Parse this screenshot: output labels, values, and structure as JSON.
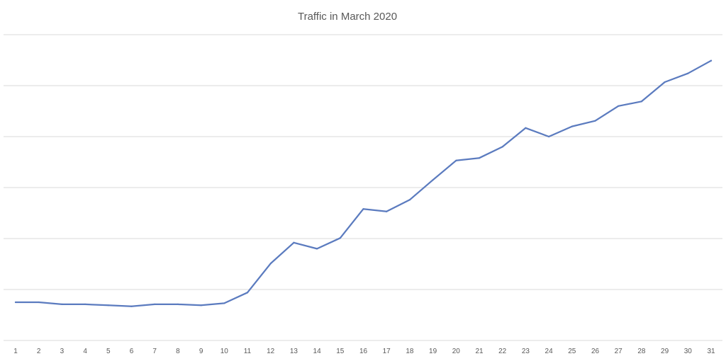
{
  "chart_data": {
    "type": "line",
    "title": "Traffic in March 2020",
    "xlabel": "",
    "ylabel": "",
    "categories": [
      "1",
      "2",
      "3",
      "4",
      "5",
      "6",
      "7",
      "8",
      "9",
      "10",
      "11",
      "12",
      "13",
      "14",
      "15",
      "16",
      "17",
      "18",
      "19",
      "20",
      "21",
      "22",
      "23",
      "24",
      "25",
      "26",
      "27",
      "28",
      "29",
      "30",
      "31"
    ],
    "series": [
      {
        "values": [
          0.75,
          0.75,
          0.71,
          0.71,
          0.69,
          0.67,
          0.71,
          0.71,
          0.69,
          0.73,
          0.94,
          1.51,
          1.92,
          1.8,
          2.01,
          2.58,
          2.53,
          2.76,
          3.15,
          3.53,
          3.58,
          3.8,
          4.17,
          4.0,
          4.2,
          4.31,
          4.6,
          4.69,
          5.07,
          5.24,
          5.49
        ]
      }
    ],
    "ylim": [
      0,
      6
    ],
    "y_tick_labels_visible": false,
    "grid": true,
    "legend": "none",
    "colors": {
      "series": "#5b7bbf",
      "grid": "#d9d9d9",
      "text": "#595959"
    }
  }
}
